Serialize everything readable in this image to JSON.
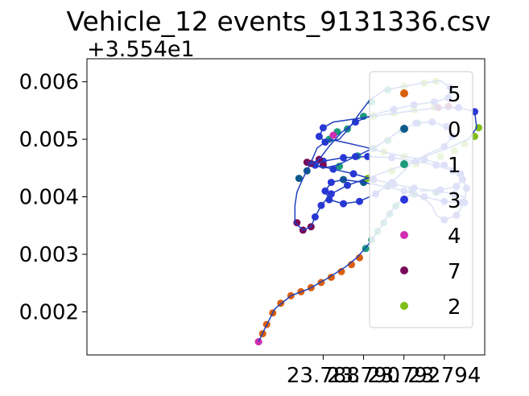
{
  "chart_data": {
    "type": "scatter",
    "title": "Vehicle_12 events_9131336.csv",
    "y_offset_label": "+3.554e1",
    "xlabel": "",
    "ylabel": "",
    "xlim": [
      23.7763,
      23.796
    ],
    "ylim": [
      0.00125,
      0.0064
    ],
    "x_ticks": [
      23.788,
      23.79,
      23.792,
      23.794
    ],
    "x_tick_labels": [
      "23.788",
      "23.790",
      "23.792",
      "23.794"
    ],
    "y_ticks": [
      0.002,
      0.003,
      0.004,
      0.005,
      0.006
    ],
    "y_tick_labels": [
      "0.002",
      "0.003",
      "0.004",
      "0.005",
      "0.006"
    ],
    "grid": false,
    "legend_position": "right",
    "legend": [
      {
        "label": "5",
        "color": "#d95f0e"
      },
      {
        "label": "0",
        "color": "#0e5a8a"
      },
      {
        "label": "1",
        "color": "#1a9b7c"
      },
      {
        "label": "3",
        "color": "#2b35d9"
      },
      {
        "label": "4",
        "color": "#d02fb4"
      },
      {
        "label": "7",
        "color": "#7a0a5a"
      },
      {
        "label": "2",
        "color": "#7fbf1a"
      }
    ],
    "line_color": "#1f3fbf",
    "path": [
      [
        23.7848,
        0.00148
      ],
      [
        23.7851,
        0.0017
      ],
      [
        23.7856,
        0.00205
      ],
      [
        23.7864,
        0.00228
      ],
      [
        23.7873,
        0.0024
      ],
      [
        23.7882,
        0.00258
      ],
      [
        23.7891,
        0.00278
      ],
      [
        23.7897,
        0.00295
      ],
      [
        23.7903,
        0.0032
      ],
      [
        23.7908,
        0.00345
      ],
      [
        23.7913,
        0.00372
      ],
      [
        23.7918,
        0.00392
      ],
      [
        23.7924,
        0.00405
      ],
      [
        23.793,
        0.00398
      ],
      [
        23.7934,
        0.00383
      ],
      [
        23.7936,
        0.00368
      ],
      [
        23.794,
        0.0036
      ],
      [
        23.7946,
        0.00368
      ],
      [
        23.795,
        0.0039
      ],
      [
        23.7951,
        0.00415
      ],
      [
        23.7948,
        0.0044
      ],
      [
        23.794,
        0.00455
      ],
      [
        23.793,
        0.00465
      ],
      [
        23.792,
        0.0047
      ],
      [
        23.791,
        0.00478
      ],
      [
        23.79,
        0.00487
      ],
      [
        23.789,
        0.00495
      ],
      [
        23.7883,
        0.005
      ],
      [
        23.7877,
        0.00485
      ],
      [
        23.7874,
        0.0046
      ],
      [
        23.787,
        0.00432
      ],
      [
        23.7867,
        0.00408
      ],
      [
        23.7866,
        0.00385
      ],
      [
        23.7866,
        0.00355
      ],
      [
        23.787,
        0.00342
      ],
      [
        23.7874,
        0.00348
      ],
      [
        23.7876,
        0.00365
      ],
      [
        23.7879,
        0.00385
      ],
      [
        23.7884,
        0.00405
      ],
      [
        23.7892,
        0.0042
      ],
      [
        23.7902,
        0.00432
      ],
      [
        23.7912,
        0.00445
      ],
      [
        23.7922,
        0.00458
      ],
      [
        23.7932,
        0.00472
      ],
      [
        23.7942,
        0.00485
      ],
      [
        23.7952,
        0.005
      ],
      [
        23.7956,
        0.0052
      ],
      [
        23.7955,
        0.00548
      ],
      [
        23.7947,
        0.00555
      ],
      [
        23.7937,
        0.00555
      ],
      [
        23.7925,
        0.0055
      ],
      [
        23.7915,
        0.00545
      ],
      [
        23.7905,
        0.0054
      ],
      [
        23.7895,
        0.00535
      ],
      [
        23.7885,
        0.0053
      ],
      [
        23.788,
        0.0052
      ],
      [
        23.7878,
        0.00505
      ],
      [
        23.7881,
        0.00495
      ],
      [
        23.7888,
        0.005
      ],
      [
        23.7893,
        0.0052
      ],
      [
        23.7898,
        0.00545
      ],
      [
        23.7903,
        0.00568
      ],
      [
        23.791,
        0.00585
      ],
      [
        23.792,
        0.00592
      ],
      [
        23.793,
        0.00598
      ],
      [
        23.7938,
        0.00602
      ],
      [
        23.7943,
        0.0059
      ],
      [
        23.7942,
        0.00572
      ],
      [
        23.7935,
        0.00565
      ],
      [
        23.7925,
        0.0056
      ],
      [
        23.7915,
        0.00552
      ],
      [
        23.7905,
        0.00543
      ],
      [
        23.7896,
        0.0053
      ],
      [
        23.7889,
        0.00512
      ],
      [
        23.7883,
        0.00488
      ],
      [
        23.7878,
        0.00465
      ],
      [
        23.7874,
        0.00458
      ],
      [
        23.7872,
        0.0046
      ],
      [
        23.7876,
        0.00455
      ],
      [
        23.7885,
        0.00448
      ],
      [
        23.7895,
        0.0044
      ],
      [
        23.7905,
        0.0043
      ],
      [
        23.7915,
        0.00422
      ],
      [
        23.7925,
        0.00415
      ],
      [
        23.7935,
        0.0041
      ],
      [
        23.7945,
        0.00405
      ],
      [
        23.795,
        0.004
      ],
      [
        23.7948,
        0.0039
      ],
      [
        23.794,
        0.00392
      ],
      [
        23.793,
        0.004
      ],
      [
        23.792,
        0.0041
      ],
      [
        23.791,
        0.00418
      ],
      [
        23.79,
        0.00425
      ],
      [
        23.789,
        0.0043
      ],
      [
        23.7884,
        0.00425
      ],
      [
        23.7881,
        0.0041
      ],
      [
        23.7883,
        0.00395
      ],
      [
        23.789,
        0.00388
      ],
      [
        23.7898,
        0.00392
      ],
      [
        23.7906,
        0.00405
      ],
      [
        23.7914,
        0.00425
      ],
      [
        23.792,
        0.00445
      ],
      [
        23.7925,
        0.00462
      ],
      [
        23.7932,
        0.00475
      ],
      [
        23.794,
        0.00487
      ],
      [
        23.7944,
        0.00505
      ],
      [
        23.7941,
        0.00522
      ],
      [
        23.7934,
        0.0053
      ],
      [
        23.7926,
        0.00528
      ],
      [
        23.7918,
        0.00515
      ],
      [
        23.7912,
        0.005
      ],
      [
        23.7905,
        0.00485
      ],
      [
        23.7896,
        0.0047
      ],
      [
        23.7887,
        0.00455
      ],
      [
        23.788,
        0.0045
      ],
      [
        23.7876,
        0.00455
      ],
      [
        23.788,
        0.00462
      ],
      [
        23.789,
        0.00468
      ],
      [
        23.7902,
        0.0047
      ],
      [
        23.7914,
        0.00468
      ],
      [
        23.7926,
        0.00462
      ],
      [
        23.7936,
        0.00455
      ],
      [
        23.7944,
        0.00445
      ],
      [
        23.7949,
        0.0043
      ],
      [
        23.7946,
        0.00418
      ],
      [
        23.7938,
        0.00412
      ],
      [
        23.7928,
        0.0041
      ]
    ],
    "points": [
      {
        "series": "5",
        "coords": [
          [
            23.7848,
            0.00148
          ],
          [
            23.785,
            0.00162
          ],
          [
            23.7852,
            0.00178
          ],
          [
            23.7855,
            0.00198
          ],
          [
            23.7859,
            0.00215
          ],
          [
            23.7864,
            0.00228
          ],
          [
            23.7869,
            0.00235
          ],
          [
            23.7874,
            0.00242
          ],
          [
            23.7879,
            0.00251
          ],
          [
            23.7884,
            0.0026
          ],
          [
            23.7889,
            0.0027
          ],
          [
            23.7894,
            0.00282
          ],
          [
            23.7898,
            0.00294
          ]
        ]
      },
      {
        "series": "1",
        "coords": [
          [
            23.7901,
            0.0031
          ],
          [
            23.7904,
            0.00325
          ],
          [
            23.7907,
            0.0034
          ],
          [
            23.791,
            0.00355
          ],
          [
            23.7913,
            0.0037
          ],
          [
            23.7916,
            0.00384
          ],
          [
            23.792,
            0.00396
          ],
          [
            23.7925,
            0.00404
          ],
          [
            23.7883,
            0.005
          ],
          [
            23.7887,
            0.00513
          ],
          [
            23.7892,
            0.00518
          ],
          [
            23.79,
            0.0054
          ],
          [
            23.7904,
            0.00565
          ],
          [
            23.7912,
            0.00586
          ],
          [
            23.7888,
            0.00453
          ],
          [
            23.7897,
            0.00471
          ],
          [
            23.7905,
            0.00484
          ],
          [
            23.7912,
            0.00498
          ],
          [
            23.7919,
            0.00515
          ],
          [
            23.7927,
            0.00528
          ]
        ]
      },
      {
        "series": "0",
        "coords": [
          [
            23.7868,
            0.00432
          ],
          [
            23.7872,
            0.00445
          ],
          [
            23.789,
            0.0043
          ],
          [
            23.79,
            0.00425
          ],
          [
            23.7912,
            0.00418
          ],
          [
            23.7924,
            0.00412
          ],
          [
            23.7936,
            0.00408
          ]
        ]
      },
      {
        "series": "2",
        "coords": [
          [
            23.792,
            0.00592
          ],
          [
            23.793,
            0.00598
          ],
          [
            23.7936,
            0.00601
          ],
          [
            23.7905,
            0.00541
          ],
          [
            23.7915,
            0.00546
          ],
          [
            23.7925,
            0.00551
          ],
          [
            23.7935,
            0.00556
          ],
          [
            23.7945,
            0.0048
          ],
          [
            23.795,
            0.00492
          ],
          [
            23.7955,
            0.00505
          ],
          [
            23.7957,
            0.0052
          ],
          [
            23.7902,
            0.00432
          ],
          [
            23.7914,
            0.00445
          ],
          [
            23.7926,
            0.00457
          ],
          [
            23.7938,
            0.0047
          ],
          [
            23.791,
            0.00478
          ],
          [
            23.792,
            0.0047
          ],
          [
            23.793,
            0.00464
          ],
          [
            23.7905,
            0.0054
          ]
        ]
      },
      {
        "series": "3",
        "coords": [
          [
            23.794,
            0.0036
          ],
          [
            23.7946,
            0.00368
          ],
          [
            23.795,
            0.0039
          ],
          [
            23.7951,
            0.00415
          ],
          [
            23.7948,
            0.0044
          ],
          [
            23.794,
            0.00455
          ],
          [
            23.793,
            0.00465
          ],
          [
            23.7876,
            0.00365
          ],
          [
            23.7879,
            0.00385
          ],
          [
            23.7884,
            0.00405
          ],
          [
            23.7892,
            0.0042
          ],
          [
            23.788,
            0.0052
          ],
          [
            23.7878,
            0.00505
          ],
          [
            23.7881,
            0.00495
          ],
          [
            23.7943,
            0.0059
          ],
          [
            23.7942,
            0.00572
          ],
          [
            23.7935,
            0.00565
          ],
          [
            23.7925,
            0.0056
          ],
          [
            23.7915,
            0.00552
          ],
          [
            23.7896,
            0.0053
          ],
          [
            23.7876,
            0.00455
          ],
          [
            23.7885,
            0.00448
          ],
          [
            23.7895,
            0.0044
          ],
          [
            23.7905,
            0.0043
          ],
          [
            23.7915,
            0.00422
          ],
          [
            23.7925,
            0.00415
          ],
          [
            23.7945,
            0.00405
          ],
          [
            23.7948,
            0.0039
          ],
          [
            23.794,
            0.00392
          ],
          [
            23.793,
            0.004
          ],
          [
            23.792,
            0.0041
          ],
          [
            23.7884,
            0.00425
          ],
          [
            23.7881,
            0.0041
          ],
          [
            23.7883,
            0.00395
          ],
          [
            23.789,
            0.00388
          ],
          [
            23.7898,
            0.00392
          ],
          [
            23.7906,
            0.00405
          ],
          [
            23.7914,
            0.00425
          ],
          [
            23.794,
            0.00487
          ],
          [
            23.7944,
            0.00505
          ],
          [
            23.7941,
            0.00522
          ],
          [
            23.7934,
            0.0053
          ],
          [
            23.7926,
            0.00528
          ],
          [
            23.7896,
            0.0047
          ],
          [
            23.788,
            0.00462
          ],
          [
            23.789,
            0.00468
          ],
          [
            23.7902,
            0.0047
          ],
          [
            23.7914,
            0.00468
          ],
          [
            23.7926,
            0.00462
          ],
          [
            23.7936,
            0.00455
          ],
          [
            23.7944,
            0.00445
          ],
          [
            23.7949,
            0.0043
          ],
          [
            23.7946,
            0.00418
          ],
          [
            23.7938,
            0.00412
          ],
          [
            23.7947,
            0.00555
          ],
          [
            23.7955,
            0.00548
          ]
        ]
      },
      {
        "series": "4",
        "coords": [
          [
            23.7848,
            0.00148
          ],
          [
            23.7885,
            0.00507
          ]
        ]
      },
      {
        "series": "7",
        "coords": [
          [
            23.7867,
            0.00355
          ],
          [
            23.787,
            0.00342
          ],
          [
            23.7874,
            0.00348
          ],
          [
            23.7874,
            0.00458
          ],
          [
            23.7872,
            0.0046
          ],
          [
            23.788,
            0.00455
          ],
          [
            23.7942,
            0.00557
          ],
          [
            23.7937,
            0.00555
          ],
          [
            23.7878,
            0.00465
          ]
        ]
      }
    ]
  }
}
